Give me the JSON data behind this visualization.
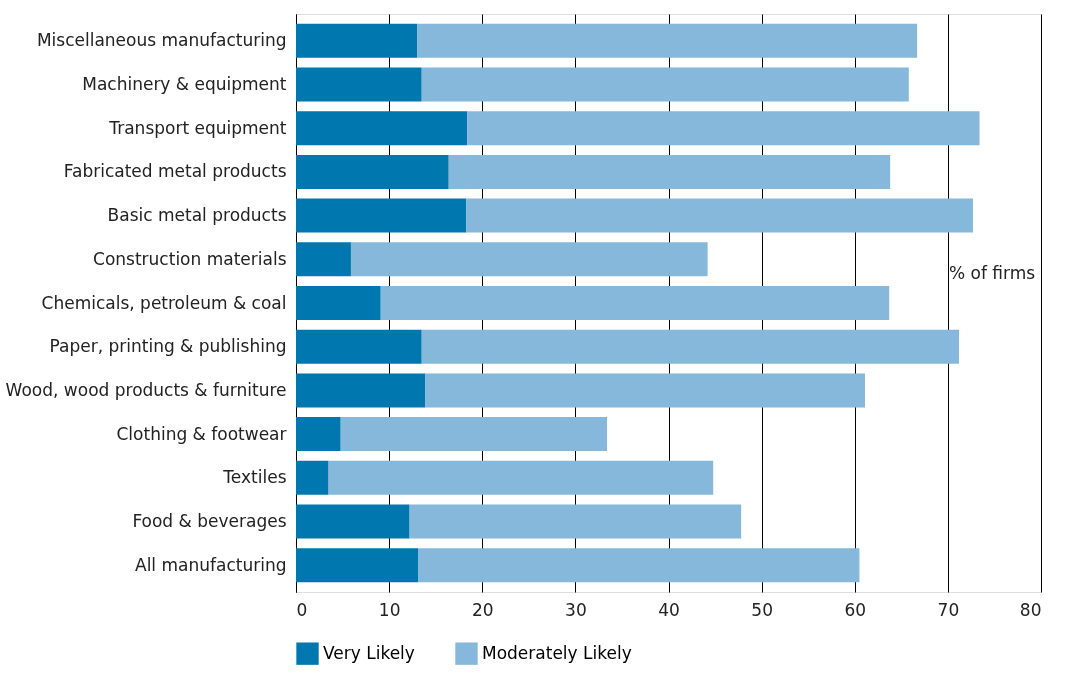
{
  "chart_data": {
    "type": "bar",
    "orientation": "horizontal",
    "stacked": true,
    "categories": [
      "Miscellaneous manufacturing",
      "Machinery & equipment",
      "Transport equipment",
      "Fabricated metal products",
      "Basic metal products",
      "Construction materials",
      "Chemicals, petroleum & coal",
      "Paper, printing & publishing",
      "Wood, wood products & furniture",
      "Clothing & footwear",
      "Textiles",
      "Food & beverages",
      "All manufacturing"
    ],
    "series": [
      {
        "name": "Very Likely",
        "color": "#0077ae",
        "values": [
          13.0,
          13.5,
          18.4,
          16.4,
          18.3,
          5.9,
          9.1,
          13.5,
          13.9,
          4.8,
          3.5,
          12.2,
          13.1
        ]
      },
      {
        "name": "Moderately Likely",
        "color": "#85b8da",
        "values": [
          53.7,
          52.3,
          55.0,
          47.4,
          54.4,
          38.3,
          54.6,
          57.7,
          47.2,
          28.6,
          41.3,
          35.6,
          47.4
        ]
      }
    ],
    "xlabel": "% of firms",
    "xlim": [
      0,
      80
    ],
    "xticks": [
      0,
      10,
      20,
      30,
      40,
      50,
      60,
      70,
      80
    ],
    "grid": "x",
    "legend": "bottom left"
  }
}
